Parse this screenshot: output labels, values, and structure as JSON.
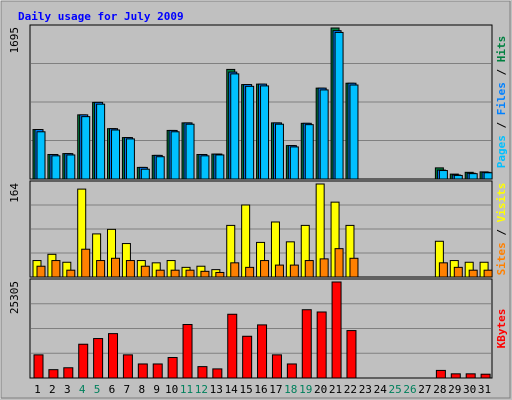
{
  "colors": {
    "background": "#c0c0c0",
    "title": "#0000ff",
    "hits": "#008040",
    "files": "#0080ff",
    "pages": "#00c0ff",
    "visits": "#ffff00",
    "sites": "#ff8000",
    "kbytes": "#ff0000",
    "weekend_label": "#00805c",
    "gridline": "#808080"
  },
  "chart_data": {
    "type": "bar",
    "title": "Daily usage for July 2009",
    "days": [
      "1",
      "2",
      "3",
      "4",
      "5",
      "6",
      "7",
      "8",
      "9",
      "10",
      "11",
      "12",
      "13",
      "14",
      "15",
      "16",
      "17",
      "18",
      "19",
      "20",
      "21",
      "22",
      "23",
      "24",
      "25",
      "26",
      "27",
      "28",
      "29",
      "30",
      "31"
    ],
    "weekend_days": [
      "4",
      "5",
      "11",
      "12",
      "18",
      "19",
      "25",
      "26"
    ],
    "panels": [
      {
        "id": "hits-files-pages",
        "ymax_label": "1695",
        "ymax": 1695,
        "legend": [
          {
            "text": "Pages",
            "color": "#00c0ff"
          },
          {
            "text": " / ",
            "color": "#000000"
          },
          {
            "text": "Files",
            "color": "#0080ff"
          },
          {
            "text": " / ",
            "color": "#000000"
          },
          {
            "text": "Hits",
            "color": "#008040"
          }
        ],
        "series": [
          {
            "name": "Hits",
            "color": "#008040",
            "values": [
              555,
              275,
              285,
              720,
              860,
              565,
              465,
              130,
              265,
              545,
              630,
              275,
              280,
              1230,
              1060,
              1065,
              630,
              375,
              625,
              1020,
              1695,
              1075,
              0,
              0,
              0,
              0,
              0,
              125,
              55,
              75,
              80
            ]
          },
          {
            "name": "Files",
            "color": "#0080ff",
            "values": [
              555,
              275,
              285,
              720,
              860,
              565,
              465,
              130,
              265,
              545,
              630,
              275,
              280,
              1200,
              1060,
              1065,
              630,
              375,
              625,
              1020,
              1665,
              1075,
              0,
              0,
              0,
              0,
              0,
              100,
              45,
              65,
              75
            ]
          },
          {
            "name": "Pages",
            "color": "#00c0ff",
            "values": [
              530,
              260,
              270,
              700,
              840,
              550,
              450,
              110,
              250,
              530,
              615,
              260,
              270,
              1180,
              1040,
              1045,
              615,
              360,
              610,
              1000,
              1645,
              1055,
              0,
              0,
              0,
              0,
              0,
              95,
              40,
              60,
              70
            ]
          }
        ]
      },
      {
        "id": "visits-sites",
        "ymax_label": "164",
        "ymax": 164,
        "legend": [
          {
            "text": "Sites",
            "color": "#ff8000"
          },
          {
            "text": " / ",
            "color": "#000000"
          },
          {
            "text": "Visits",
            "color": "#ffff00"
          }
        ],
        "series": [
          {
            "name": "Visits",
            "color": "#ffff00",
            "values": [
              29,
              40,
              26,
              155,
              76,
              84,
              59,
              29,
              25,
              29,
              17,
              19,
              13,
              91,
              127,
              61,
              97,
              62,
              91,
              164,
              132,
              91,
              0,
              0,
              0,
              0,
              0,
              63,
              29,
              26,
              26
            ]
          },
          {
            "name": "Sites",
            "color": "#ff8000",
            "values": [
              19,
              29,
              12,
              49,
              29,
              33,
              29,
              19,
              12,
              12,
              12,
              10,
              8,
              25,
              17,
              29,
              21,
              21,
              29,
              32,
              50,
              33,
              0,
              0,
              0,
              0,
              0,
              25,
              17,
              12,
              12
            ]
          }
        ]
      },
      {
        "id": "kbytes",
        "ymax_label": "25305",
        "ymax": 25305,
        "legend": [
          {
            "text": "KBytes",
            "color": "#ff0000"
          }
        ],
        "series": [
          {
            "name": "KBytes",
            "color": "#ff0000",
            "values": [
              6100,
              2200,
              2700,
              8900,
              10400,
              11700,
              6100,
              3700,
              3700,
              5400,
              14100,
              3000,
              2400,
              16800,
              11000,
              14000,
              6100,
              3700,
              18000,
              17400,
              25305,
              12500,
              0,
              0,
              0,
              0,
              0,
              2000,
              1100,
              1100,
              1000
            ]
          }
        ]
      }
    ]
  }
}
